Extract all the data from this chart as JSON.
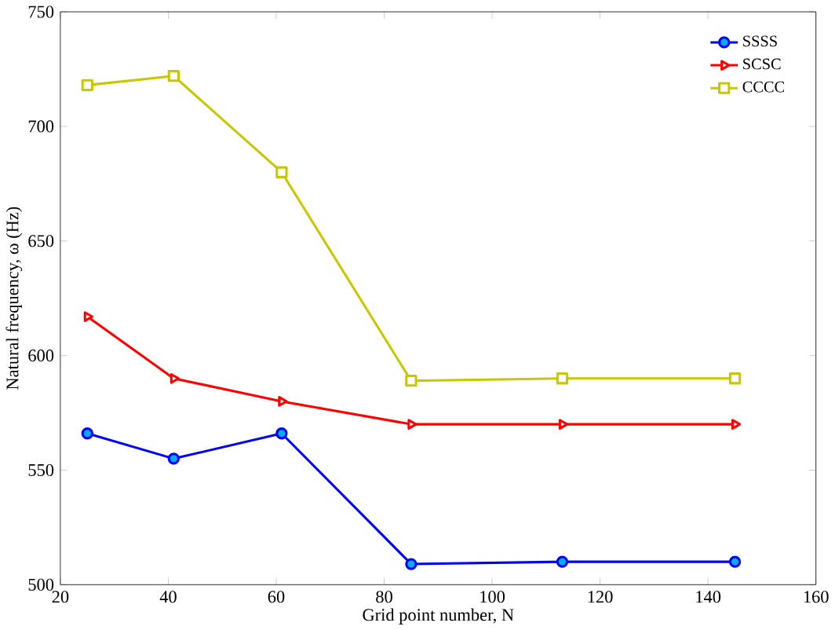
{
  "chart_data": {
    "type": "line",
    "xlabel": "Grid point number, N",
    "ylabel": "Natural frequency, ω (Hz)",
    "x": [
      25,
      41,
      61,
      85,
      113,
      145
    ],
    "series": [
      {
        "name": "SSSS",
        "color": "#0000ff",
        "marker": "circle",
        "values": [
          566,
          555,
          566,
          509,
          510,
          510
        ]
      },
      {
        "name": "SCSC",
        "color": "#ff0000",
        "marker": "triangle",
        "values": [
          617,
          590,
          580,
          570,
          570,
          570
        ]
      },
      {
        "name": "CCCC",
        "color": "#c8c800",
        "marker": "square",
        "values": [
          718,
          722,
          680,
          589,
          590,
          590
        ]
      }
    ],
    "xlim": [
      20,
      160
    ],
    "xticks": [
      20,
      40,
      60,
      80,
      100,
      120,
      140,
      160
    ],
    "ylim": [
      500,
      750
    ],
    "yticks": [
      500,
      550,
      600,
      650,
      700,
      750
    ],
    "grid": false,
    "legend": "top right",
    "line_style": "solid"
  }
}
